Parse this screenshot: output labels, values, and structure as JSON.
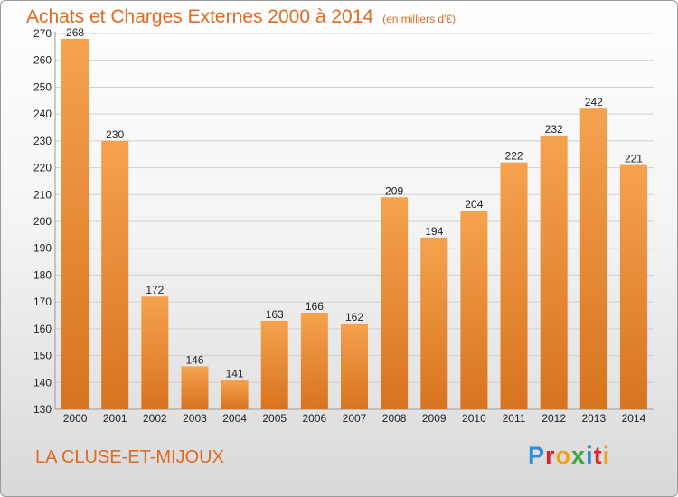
{
  "title": "Achats et Charges Externes 2000 à 2014",
  "subtitle": "(en milliers d'€)",
  "commune": "LA CLUSE-ET-MIJOUX",
  "brand": {
    "text": "Proxiti",
    "letters": [
      {
        "c": "P",
        "color": "#2a8fd6"
      },
      {
        "c": "r",
        "color": "#e2222a"
      },
      {
        "c": "o",
        "color": "#f0a318"
      },
      {
        "c": "x",
        "color": "#3aa83a"
      },
      {
        "c": "i",
        "color": "#2a8fd6"
      },
      {
        "c": "t",
        "color": "#e2222a"
      },
      {
        "c": "i",
        "color": "#f0a318"
      }
    ]
  },
  "colors": {
    "accent": "#e06a22",
    "bar_light": "#f5a24e",
    "bar_dark": "#d8731f",
    "grid": "#cfcfcf"
  },
  "chart_data": {
    "type": "bar",
    "categories": [
      "2000",
      "2001",
      "2002",
      "2003",
      "2004",
      "2005",
      "2006",
      "2007",
      "2008",
      "2009",
      "2010",
      "2011",
      "2012",
      "2013",
      "2014"
    ],
    "values": [
      268,
      230,
      172,
      146,
      141,
      163,
      166,
      162,
      209,
      194,
      204,
      222,
      232,
      242,
      221
    ],
    "title": "Achats et Charges Externes 2000 à 2014",
    "ylim": [
      130,
      270
    ],
    "yticks": [
      130,
      140,
      150,
      160,
      170,
      180,
      190,
      200,
      210,
      220,
      230,
      240,
      250,
      260,
      270
    ],
    "grid": true,
    "data_labels": true
  }
}
